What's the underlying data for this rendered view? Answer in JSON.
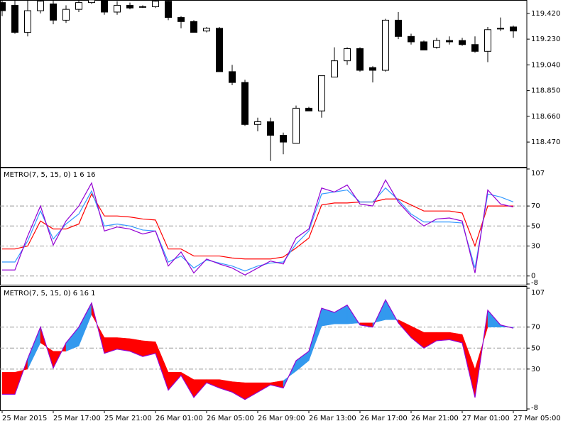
{
  "chart_data": [
    {
      "type": "candlestick",
      "categories": [
        "25 Mar 2015",
        null,
        null,
        null,
        "25 Mar 17:00",
        null,
        null,
        null,
        "25 Mar 21:00",
        null,
        null,
        null,
        "26 Mar 01:00",
        null,
        null,
        null,
        "26 Mar 05:00",
        null,
        null,
        null,
        "26 Mar 09:00",
        null,
        null,
        null,
        "26 Mar 13:00",
        null,
        null,
        null,
        "26 Mar 17:00",
        null,
        null,
        null,
        "26 Mar 21:00",
        null,
        null,
        null,
        "27 Mar 01:00",
        null,
        null,
        null,
        "27 Mar 05:00"
      ],
      "open": [
        119.5,
        119.48,
        119.28,
        119.44,
        119.49,
        119.37,
        119.45,
        119.5,
        119.52,
        119.43,
        119.48,
        119.47,
        119.47,
        119.51,
        119.39,
        119.36,
        119.29,
        119.31,
        118.99,
        118.91,
        118.6,
        118.62,
        118.52,
        118.46,
        118.72,
        118.7,
        118.95,
        119.07,
        119.16,
        119.02,
        119.0,
        119.37,
        119.25,
        119.21,
        119.17,
        119.22,
        119.22,
        119.19,
        119.14,
        119.31,
        119.32
      ],
      "high": [
        119.52,
        119.52,
        119.52,
        119.52,
        119.52,
        119.48,
        119.52,
        119.52,
        119.52,
        119.51,
        119.5,
        119.48,
        119.52,
        119.52,
        119.4,
        119.37,
        119.32,
        119.32,
        119.04,
        118.93,
        118.65,
        118.65,
        118.54,
        118.74,
        118.73,
        118.96,
        119.17,
        119.17,
        119.17,
        119.03,
        119.38,
        119.43,
        119.27,
        119.22,
        119.24,
        119.25,
        119.24,
        119.25,
        119.32,
        119.39,
        119.33
      ],
      "low": [
        119.4,
        119.27,
        119.25,
        119.42,
        119.34,
        119.35,
        119.43,
        119.49,
        119.41,
        119.41,
        119.45,
        119.46,
        119.46,
        119.37,
        119.31,
        119.28,
        119.28,
        118.99,
        118.89,
        118.59,
        118.55,
        118.33,
        118.38,
        118.46,
        118.7,
        118.65,
        118.95,
        119.04,
        118.99,
        118.91,
        118.99,
        119.23,
        119.19,
        119.15,
        119.16,
        119.19,
        119.18,
        119.13,
        119.06,
        119.29,
        119.24
      ],
      "close": [
        119.44,
        119.28,
        119.44,
        119.51,
        119.37,
        119.45,
        119.5,
        119.52,
        119.43,
        119.48,
        119.46,
        119.47,
        119.51,
        119.39,
        119.36,
        119.28,
        119.31,
        118.99,
        118.91,
        118.6,
        118.62,
        118.52,
        118.47,
        118.72,
        118.7,
        118.96,
        119.07,
        119.16,
        119.0,
        119.0,
        119.37,
        119.25,
        119.21,
        119.15,
        119.22,
        119.21,
        119.19,
        119.14,
        119.3,
        119.31,
        119.29
      ],
      "up_color": "#ffffff",
      "down_color": "#000000",
      "ylim": [
        118.287,
        119.519
      ],
      "yticks": [
        {
          "value": 119.42,
          "label": "119.420"
        },
        {
          "value": 119.23,
          "label": "119.230"
        },
        {
          "value": 119.04,
          "label": "119.040"
        },
        {
          "value": 118.85,
          "label": "118.850"
        },
        {
          "value": 118.66,
          "label": "118.660"
        },
        {
          "value": 118.47,
          "label": "118.470"
        }
      ],
      "grid": false
    },
    {
      "type": "line",
      "title": "METRO(7, 5, 15, 0) 1 6 16",
      "series": [
        {
          "color": "#ff0000",
          "values": [
            27,
            27,
            30,
            55,
            47,
            47,
            52,
            82,
            60,
            60,
            59,
            57,
            56,
            27,
            27,
            20,
            20,
            20,
            18,
            17,
            17,
            17,
            19,
            28,
            38,
            71,
            73,
            73,
            74,
            74,
            77,
            77,
            71,
            65,
            65,
            65,
            63,
            30,
            70,
            70,
            70
          ]
        },
        {
          "color": "#3399ff",
          "values": [
            14,
            14,
            35,
            65,
            37,
            52,
            62,
            85,
            50,
            52,
            50,
            46,
            45,
            14,
            20,
            8,
            16,
            13,
            10,
            5,
            10,
            13,
            14,
            32,
            45,
            82,
            84,
            86,
            74,
            74,
            88,
            76,
            62,
            54,
            54,
            54,
            53,
            8,
            82,
            79,
            74
          ]
        },
        {
          "color": "#9400d3",
          "values": [
            6,
            6,
            40,
            70,
            31,
            55,
            70,
            93,
            45,
            49,
            47,
            42,
            45,
            10,
            24,
            3,
            17,
            12,
            8,
            1,
            8,
            15,
            12,
            38,
            47,
            88,
            84,
            91,
            72,
            70,
            96,
            74,
            60,
            50,
            57,
            58,
            55,
            3,
            86,
            72,
            69
          ]
        }
      ],
      "ylim": [
        -8,
        107
      ],
      "yticks": [
        107,
        70,
        50,
        30,
        0,
        -8
      ],
      "grid": true
    },
    {
      "type": "band",
      "title": "METRO(7, 5, 15, 0) 6 16 1",
      "series": [
        {
          "color": "#9400d3",
          "values": [
            6,
            6,
            40,
            70,
            31,
            55,
            70,
            93,
            45,
            49,
            47,
            42,
            45,
            10,
            24,
            3,
            17,
            12,
            8,
            1,
            8,
            15,
            12,
            38,
            47,
            88,
            84,
            91,
            72,
            70,
            96,
            74,
            60,
            50,
            57,
            58,
            55,
            3,
            86,
            72,
            69
          ]
        },
        {
          "values": [
            27,
            27,
            30,
            55,
            47,
            47,
            52,
            82,
            60,
            60,
            59,
            57,
            56,
            27,
            27,
            20,
            20,
            20,
            18,
            17,
            17,
            17,
            19,
            28,
            38,
            71,
            73,
            73,
            74,
            74,
            77,
            77,
            71,
            65,
            65,
            65,
            63,
            30,
            70,
            70,
            70
          ]
        }
      ],
      "up_color": "#3399ee",
      "down_color": "#ff0000",
      "ylim": [
        -8,
        107
      ],
      "yticks": [
        107,
        70,
        50,
        30,
        -8
      ],
      "grid": true
    }
  ]
}
